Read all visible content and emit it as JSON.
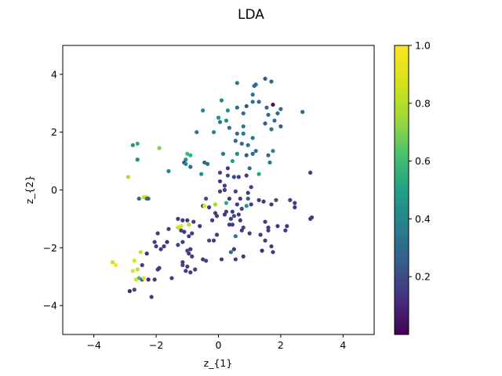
{
  "chart_data": {
    "type": "scatter",
    "title": "LDA",
    "xlabel": "z_{1}",
    "ylabel": "z_{2}",
    "xlim": [
      -5,
      5
    ],
    "ylim": [
      -5,
      5
    ],
    "xticks": [
      -4,
      -2,
      0,
      2,
      4
    ],
    "yticks": [
      -4,
      -2,
      0,
      2,
      4
    ],
    "grid": false,
    "colormap": "viridis",
    "colorbar": {
      "range": [
        0.0,
        1.0
      ],
      "ticks": [
        0.2,
        0.4,
        0.6,
        0.8,
        1.0
      ]
    },
    "points": [
      [
        1.5,
        3.85
      ],
      [
        1.7,
        3.75
      ],
      [
        0.6,
        3.7
      ],
      [
        1.2,
        3.65
      ],
      [
        1.15,
        3.6
      ],
      [
        1.1,
        3.3
      ],
      [
        1.3,
        3.05
      ],
      [
        1.1,
        3.05
      ],
      [
        0.9,
        2.9
      ],
      [
        1.55,
        2.85
      ],
      [
        1.75,
        2.95
      ],
      [
        0.1,
        3.1
      ],
      [
        1.6,
        2.6
      ],
      [
        2.0,
        2.8
      ],
      [
        1.9,
        2.65
      ],
      [
        2.7,
        2.7
      ],
      [
        1.8,
        2.4
      ],
      [
        1.5,
        2.3
      ],
      [
        2.0,
        2.2
      ],
      [
        1.7,
        2.1
      ],
      [
        0.8,
        2.65
      ],
      [
        0.3,
        2.75
      ],
      [
        0.6,
        2.85
      ],
      [
        -0.5,
        2.75
      ],
      [
        0.0,
        2.5
      ],
      [
        0.05,
        2.35
      ],
      [
        0.25,
        2.4
      ],
      [
        0.8,
        2.2
      ],
      [
        0.35,
        2.15
      ],
      [
        0.6,
        1.95
      ],
      [
        0.55,
        1.7
      ],
      [
        0.8,
        1.95
      ],
      [
        0.75,
        1.6
      ],
      [
        1.1,
        1.8
      ],
      [
        0.95,
        1.55
      ],
      [
        1.2,
        1.35
      ],
      [
        1.75,
        1.35
      ],
      [
        1.6,
        1.2
      ],
      [
        1.1,
        1.25
      ],
      [
        1.65,
        0.95
      ],
      [
        0.9,
        1.2
      ],
      [
        1.0,
        0.75
      ],
      [
        1.3,
        0.55
      ],
      [
        0.6,
        1.25
      ],
      [
        0.45,
        1.0
      ],
      [
        0.15,
        1.25
      ],
      [
        -0.7,
        2.0
      ],
      [
        -0.15,
        2.0
      ],
      [
        0.3,
        0.75
      ],
      [
        -0.9,
        1.2
      ],
      [
        -1.0,
        1.25
      ],
      [
        -1.05,
        1.05
      ],
      [
        -1.1,
        0.95
      ],
      [
        -1.6,
        0.65
      ],
      [
        -0.55,
        0.55
      ],
      [
        -0.35,
        0.9
      ],
      [
        -0.45,
        0.95
      ],
      [
        -0.9,
        0.8
      ],
      [
        -1.05,
        0.9
      ],
      [
        0.05,
        0.6
      ],
      [
        0.05,
        0.3
      ],
      [
        0.5,
        0.45
      ],
      [
        0.9,
        0.5
      ],
      [
        0.2,
        0.15
      ],
      [
        0.55,
        -0.05
      ],
      [
        0.35,
        -0.3
      ],
      [
        0.6,
        -0.5
      ],
      [
        0.75,
        -0.65
      ],
      [
        0.9,
        -0.55
      ],
      [
        0.45,
        -0.75
      ],
      [
        0.2,
        -0.85
      ],
      [
        0.5,
        -0.9
      ],
      [
        -0.1,
        -0.8
      ],
      [
        -0.3,
        -0.6
      ],
      [
        -0.5,
        -0.55
      ],
      [
        -0.2,
        -1.05
      ],
      [
        0.35,
        -1.2
      ],
      [
        0.55,
        -1.6
      ],
      [
        0.45,
        -1.2
      ],
      [
        0.8,
        -1.3
      ],
      [
        1.0,
        -1.5
      ],
      [
        1.5,
        -1.1
      ],
      [
        1.6,
        -1.3
      ],
      [
        1.6,
        -1.4
      ],
      [
        1.9,
        -1.25
      ],
      [
        1.35,
        -1.55
      ],
      [
        1.5,
        -1.75
      ],
      [
        1.7,
        -1.95
      ],
      [
        1.4,
        -2.1
      ],
      [
        1.75,
        -2.15
      ],
      [
        2.2,
        -1.25
      ],
      [
        2.15,
        -1.4
      ],
      [
        2.3,
        -0.35
      ],
      [
        2.45,
        -0.45
      ],
      [
        2.45,
        -0.6
      ],
      [
        3.0,
        -0.95
      ],
      [
        2.95,
        -1.0
      ],
      [
        2.95,
        0.6
      ],
      [
        1.7,
        -0.5
      ],
      [
        1.85,
        -0.35
      ],
      [
        0.95,
        -0.3
      ],
      [
        0.7,
        -0.3
      ],
      [
        -0.8,
        -1.1
      ],
      [
        -0.6,
        -1.25
      ],
      [
        -1.0,
        -1.05
      ],
      [
        -1.15,
        -1.05
      ],
      [
        -1.3,
        -1.0
      ],
      [
        -0.95,
        -1.2
      ],
      [
        -1.2,
        -1.4
      ],
      [
        -1.1,
        -1.45
      ],
      [
        -0.85,
        -1.5
      ],
      [
        -0.95,
        -1.6
      ],
      [
        -1.6,
        -1.35
      ],
      [
        -1.95,
        -1.5
      ],
      [
        -2.05,
        -1.8
      ],
      [
        -2.0,
        -1.95
      ],
      [
        -1.75,
        -1.95
      ],
      [
        -1.65,
        -1.8
      ],
      [
        -1.85,
        -2.05
      ],
      [
        -1.15,
        -1.8
      ],
      [
        -1.3,
        -1.9
      ],
      [
        -1.0,
        -2.1
      ],
      [
        -0.95,
        -2.2
      ],
      [
        -0.9,
        -2.05
      ],
      [
        -0.5,
        -2.4
      ],
      [
        -0.4,
        -2.45
      ],
      [
        -0.85,
        -2.3
      ],
      [
        -1.15,
        -2.5
      ],
      [
        -1.0,
        -2.65
      ],
      [
        -1.15,
        -2.6
      ],
      [
        -0.75,
        -2.75
      ],
      [
        -0.9,
        -2.85
      ],
      [
        -1.05,
        -2.8
      ],
      [
        -1.9,
        -2.7
      ],
      [
        -1.95,
        -2.75
      ],
      [
        -2.05,
        -3.1
      ],
      [
        -1.5,
        -3.05
      ],
      [
        -2.25,
        -3.1
      ],
      [
        -2.7,
        -3.45
      ],
      [
        -2.85,
        -3.5
      ],
      [
        -2.15,
        -3.7
      ],
      [
        -2.45,
        -2.6
      ],
      [
        -2.3,
        -2.2
      ],
      [
        -2.5,
        -2.15
      ],
      [
        -2.7,
        -2.45
      ],
      [
        -2.75,
        -2.8
      ],
      [
        -2.6,
        -2.75
      ],
      [
        -3.4,
        -2.5
      ],
      [
        -3.3,
        -2.6
      ],
      [
        -2.55,
        -3.05
      ],
      [
        -2.45,
        -3.1
      ],
      [
        -2.4,
        -3.05
      ],
      [
        -2.65,
        -3.1
      ],
      [
        -1.3,
        -1.3
      ],
      [
        -1.2,
        -1.25
      ],
      [
        -0.45,
        -0.55
      ],
      [
        -2.3,
        -0.25
      ],
      [
        -2.4,
        -0.25
      ],
      [
        -2.55,
        -0.3
      ],
      [
        -2.25,
        -0.3
      ],
      [
        -2.3,
        -0.3
      ],
      [
        -2.6,
        1.05
      ],
      [
        -2.75,
        1.55
      ],
      [
        -2.6,
        1.6
      ],
      [
        -1.9,
        1.45
      ],
      [
        -2.9,
        0.45
      ],
      [
        -0.1,
        -0.5
      ],
      [
        0.25,
        -0.45
      ],
      [
        0.65,
        -0.85
      ],
      [
        0.7,
        -1.05
      ],
      [
        0.75,
        -1.4
      ],
      [
        0.5,
        -2.05
      ],
      [
        0.4,
        -2.15
      ],
      [
        0.8,
        -2.3
      ],
      [
        0.55,
        -2.4
      ],
      [
        0.1,
        -2.4
      ],
      [
        -0.05,
        -1.55
      ],
      [
        -0.15,
        -1.75
      ],
      [
        -0.3,
        -1.75
      ],
      [
        0.4,
        -1.0
      ],
      [
        0.25,
        -0.75
      ],
      [
        -0.05,
        -0.9
      ],
      [
        0.05,
        -0.05
      ],
      [
        0.2,
        0.0
      ],
      [
        0.3,
        0.5
      ],
      [
        -0.4,
        -0.3
      ],
      [
        0.65,
        0.45
      ],
      [
        1.05,
        0.1
      ],
      [
        0.95,
        -0.1
      ],
      [
        1.05,
        -0.5
      ],
      [
        1.45,
        -0.4
      ],
      [
        1.3,
        -0.35
      ]
    ],
    "values": [
      0.25,
      0.3,
      0.35,
      0.3,
      0.3,
      0.35,
      0.3,
      0.35,
      0.25,
      0.3,
      0.05,
      0.4,
      0.3,
      0.3,
      0.3,
      0.3,
      0.3,
      0.25,
      0.25,
      0.35,
      0.3,
      0.45,
      0.3,
      0.4,
      0.45,
      0.35,
      0.4,
      0.35,
      0.3,
      0.3,
      0.3,
      0.35,
      0.3,
      0.35,
      0.35,
      0.3,
      0.4,
      0.3,
      0.3,
      0.35,
      0.25,
      0.3,
      0.5,
      0.45,
      0.5,
      0.35,
      0.35,
      0.4,
      0.15,
      0.55,
      0.6,
      0.45,
      0.2,
      0.4,
      0.45,
      0.3,
      0.3,
      0.3,
      0.4,
      0.2,
      0.15,
      0.2,
      0.15,
      0.15,
      0.2,
      0.15,
      0.15,
      0.2,
      0.45,
      0.15,
      0.15,
      0.2,
      0.15,
      0.15,
      0.15,
      0.15,
      0.15,
      0.35,
      0.15,
      0.2,
      0.15,
      0.15,
      0.15,
      0.15,
      0.15,
      0.15,
      0.15,
      0.15,
      0.1,
      0.15,
      0.15,
      0.15,
      0.15,
      0.15,
      0.15,
      0.15,
      0.15,
      0.15,
      0.15,
      0.2,
      0.25,
      0.15,
      0.15,
      0.15,
      0.15,
      0.15,
      0.15,
      0.8,
      0.15,
      0.15,
      0.15,
      0.15,
      0.15,
      0.15,
      0.15,
      0.15,
      0.15,
      0.1,
      0.15,
      0.15,
      0.2,
      0.2,
      0.15,
      0.15,
      0.15,
      0.2,
      0.15,
      0.15,
      0.15,
      0.2,
      0.15,
      0.15,
      0.15,
      0.15,
      0.15,
      0.15,
      0.15,
      0.1,
      0.2,
      0.1,
      0.15,
      0.15,
      0.1,
      0.85,
      0.9,
      0.9,
      0.85,
      0.85,
      0.95,
      0.6,
      0.25,
      0.9,
      0.9,
      0.85,
      0.9,
      0.9,
      0.9,
      0.85,
      0.3,
      0.35,
      0.3,
      0.4,
      0.45,
      0.55,
      0.7,
      0.8,
      0.75,
      0.55,
      0.15,
      0.15,
      0.15,
      0.15,
      0.3,
      0.15,
      0.15,
      0.15,
      0.15,
      0.15,
      0.2,
      0.15,
      0.15,
      0.15,
      0.15,
      0.15,
      0.2,
      0.2,
      0.15,
      0.15,
      0.15,
      0.15,
      0.15,
      0.15
    ]
  }
}
